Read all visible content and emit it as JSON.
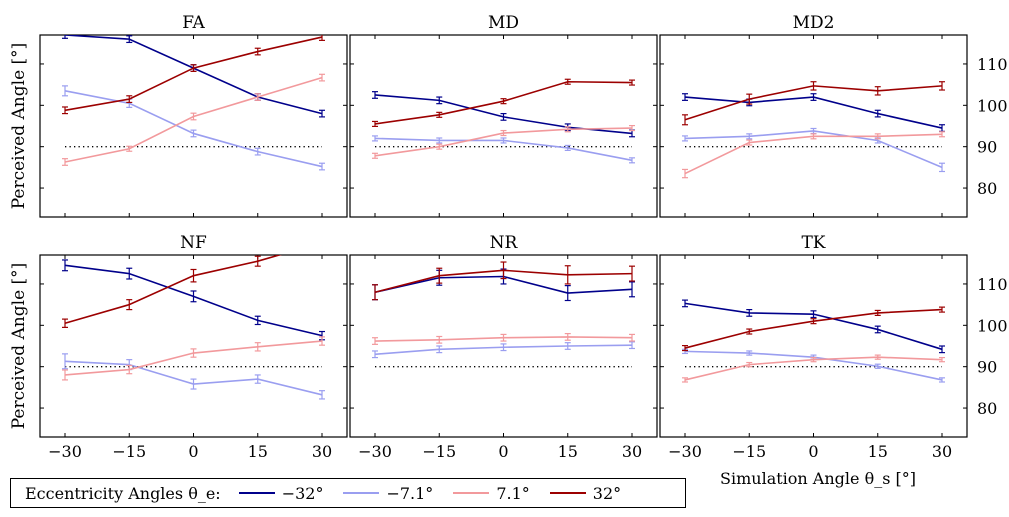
{
  "chart_data": {
    "type": "line",
    "layout": "2x3 small multiples",
    "x": [
      -30,
      -15,
      0,
      15,
      30
    ],
    "x_tick_labels": [
      "−30",
      "−15",
      "0",
      "15",
      "30"
    ],
    "xlabel": "Simulation Angle θ_s [°]",
    "ylabel": "Perceived Angle [°]",
    "ylim": [
      73,
      117
    ],
    "y_ticks": [
      80,
      90,
      100,
      110
    ],
    "y_tick_labels": [
      "80",
      "90",
      "100",
      "110"
    ],
    "reference_line": {
      "y": 90,
      "style": "dotted"
    },
    "grid": false,
    "legend": {
      "placement": "bottom-left",
      "title": "Eccentricity Angles θ_e:",
      "entries": [
        {
          "label": "−32°",
          "color": "#00008b"
        },
        {
          "label": "−7.1°",
          "color": "#9a9ef0"
        },
        {
          "label": "7.1°",
          "color": "#f2999c"
        },
        {
          "label": "32°",
          "color": "#9c0000"
        }
      ]
    },
    "panels": [
      {
        "title": "FA",
        "series": [
          {
            "name": "−32°",
            "values": [
              117,
              116,
              109,
              102,
              98
            ],
            "errors": [
              0.8,
              0.8,
              0.8,
              0.8,
              0.8
            ]
          },
          {
            "name": "−7.1°",
            "values": [
              103.5,
              100.5,
              93.2,
              88.8,
              85.2
            ],
            "errors": [
              1.2,
              1,
              0.8,
              0.8,
              0.8
            ]
          },
          {
            "name": "7.1°",
            "values": [
              86.3,
              89.5,
              97.3,
              102,
              106.7
            ],
            "errors": [
              0.8,
              0.6,
              0.8,
              0.8,
              0.8
            ]
          },
          {
            "name": "32°",
            "values": [
              98.8,
              101.5,
              109,
              113,
              116.5
            ],
            "errors": [
              0.8,
              0.8,
              0.8,
              0.8,
              0.8
            ]
          }
        ]
      },
      {
        "title": "MD",
        "series": [
          {
            "name": "−32°",
            "values": [
              102.5,
              101.2,
              97.2,
              94.7,
              93.2
            ],
            "errors": [
              0.8,
              0.8,
              0.8,
              0.8,
              0.8
            ]
          },
          {
            "name": "−7.1°",
            "values": [
              92,
              91.5,
              91.5,
              89.7,
              86.7
            ],
            "errors": [
              0.6,
              0.6,
              0.6,
              0.6,
              0.6
            ]
          },
          {
            "name": "7.1°",
            "values": [
              87.8,
              90,
              93.3,
              94.2,
              94.5
            ],
            "errors": [
              0.6,
              0.6,
              0.6,
              0.6,
              0.6
            ]
          },
          {
            "name": "32°",
            "values": [
              95.5,
              97.7,
              101,
              105.7,
              105.5
            ],
            "errors": [
              0.6,
              0.6,
              0.6,
              0.6,
              0.6
            ]
          }
        ]
      },
      {
        "title": "MD2",
        "series": [
          {
            "name": "−32°",
            "values": [
              102,
              100.7,
              102,
              98,
              94.5
            ],
            "errors": [
              0.8,
              0.8,
              0.8,
              0.8,
              0.8
            ]
          },
          {
            "name": "−7.1°",
            "values": [
              92,
              92.5,
              93.8,
              91.5,
              85
            ],
            "errors": [
              0.6,
              0.6,
              0.6,
              0.6,
              1
            ]
          },
          {
            "name": "7.1°",
            "values": [
              83.5,
              91,
              92.5,
              92.5,
              93
            ],
            "errors": [
              1,
              0.6,
              0.6,
              0.6,
              0.6
            ]
          },
          {
            "name": "32°",
            "values": [
              96.5,
              101.5,
              104.7,
              103.5,
              104.7
            ],
            "errors": [
              1.2,
              1.2,
              1,
              1,
              1
            ]
          }
        ]
      },
      {
        "title": "NF",
        "series": [
          {
            "name": "−32°",
            "values": [
              114.5,
              112.5,
              107,
              101.2,
              97.5
            ],
            "errors": [
              1.3,
              1.3,
              1.3,
              1,
              1
            ]
          },
          {
            "name": "−7.1°",
            "values": [
              91.3,
              90.5,
              85.8,
              87,
              83.2
            ],
            "errors": [
              1.8,
              1.2,
              1.2,
              1,
              1
            ]
          },
          {
            "name": "7.1°",
            "values": [
              88,
              89.3,
              93.3,
              94.8,
              96.2
            ],
            "errors": [
              1.2,
              1,
              1,
              1,
              1
            ]
          },
          {
            "name": "32°",
            "values": [
              100.5,
              105,
              112,
              115.5,
              120
            ],
            "errors": [
              1,
              1.2,
              1.5,
              1.2,
              1.2
            ]
          }
        ]
      },
      {
        "title": "NR",
        "series": [
          {
            "name": "−32°",
            "values": [
              108,
              111.5,
              111.8,
              107.8,
              108.7
            ],
            "errors": [
              1.8,
              1.8,
              1.8,
              1.8,
              1.8
            ]
          },
          {
            "name": "−7.1°",
            "values": [
              93,
              94.2,
              94.7,
              95,
              95.2
            ],
            "errors": [
              0.8,
              0.8,
              0.8,
              0.8,
              0.8
            ]
          },
          {
            "name": "7.1°",
            "values": [
              96.2,
              96.5,
              97,
              97.2,
              97
            ],
            "errors": [
              0.8,
              0.8,
              0.8,
              0.8,
              0.8
            ]
          },
          {
            "name": "32°",
            "values": [
              108,
              112,
              113.3,
              112.2,
              112.5
            ],
            "errors": [
              1.8,
              1.8,
              2,
              2.2,
              1.8
            ]
          }
        ]
      },
      {
        "title": "TK",
        "series": [
          {
            "name": "−32°",
            "values": [
              105.3,
              103,
              102.7,
              99,
              94.2
            ],
            "errors": [
              0.8,
              0.8,
              0.8,
              0.8,
              0.8
            ]
          },
          {
            "name": "−7.1°",
            "values": [
              93.7,
              93.3,
              92.3,
              90.1,
              86.8
            ],
            "errors": [
              0.5,
              0.5,
              0.5,
              0.5,
              0.5
            ]
          },
          {
            "name": "7.1°",
            "values": [
              86.8,
              90.5,
              91.7,
              92.3,
              91.7
            ],
            "errors": [
              0.5,
              0.5,
              0.5,
              0.5,
              0.5
            ]
          },
          {
            "name": "32°",
            "values": [
              94.5,
              98.5,
              101,
              103,
              103.8
            ],
            "errors": [
              0.6,
              0.6,
              0.6,
              0.6,
              0.6
            ]
          }
        ]
      }
    ]
  }
}
